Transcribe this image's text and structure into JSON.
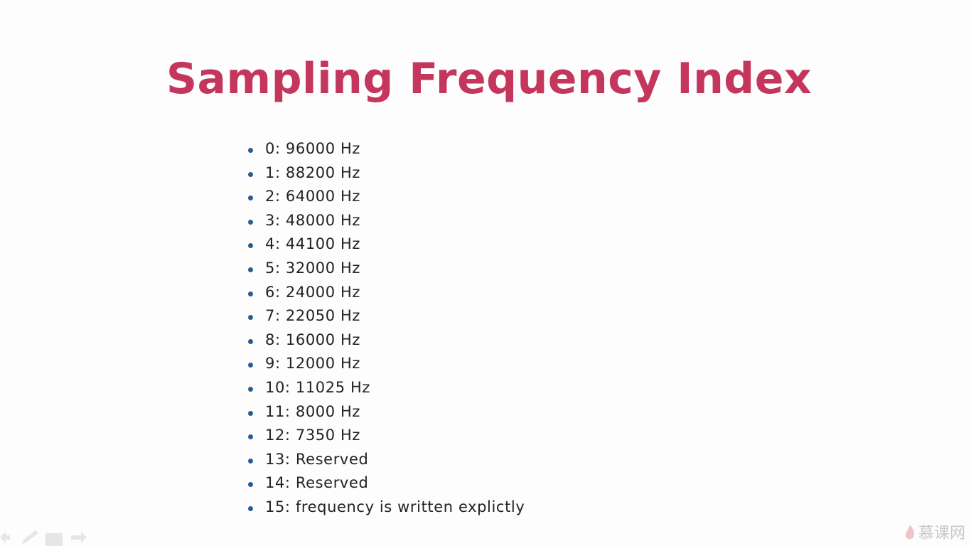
{
  "slide": {
    "title": "Sampling Frequency Index",
    "items": [
      "0: 96000 Hz",
      "1: 88200 Hz",
      "2: 64000 Hz",
      "3: 48000 Hz",
      "4: 44100 Hz",
      "5: 32000 Hz",
      "6: 24000 Hz",
      "7: 22050 Hz",
      "8: 16000 Hz",
      "9: 12000 Hz",
      "10: 11025 Hz",
      "11: 8000 Hz",
      "12: 7350 Hz",
      "13: Reserved",
      "14: Reserved",
      "15: frequency is written explictly"
    ]
  },
  "watermark": "慕课网"
}
